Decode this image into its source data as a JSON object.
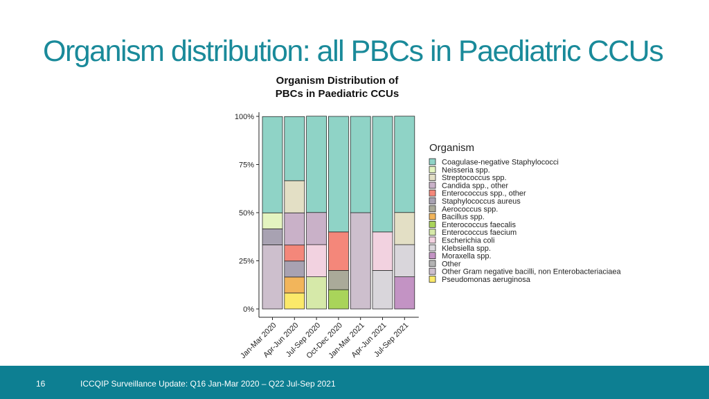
{
  "slide": {
    "title": "Organism distribution: all PBCs in Paediatric CCUs",
    "page_number": "16",
    "footer": "ICCQIP Surveillance Update: Q16 Jan-Mar 2020 – Q22 Jul-Sep 2021"
  },
  "chart_data": {
    "type": "bar",
    "stacked": true,
    "normalized": true,
    "title_lines": [
      "Organism Distribution of",
      "PBCs in Paediatric CCUs"
    ],
    "categories": [
      "Jan-Mar 2020",
      "Apr-Jun 2020",
      "Jul-Sep 2020",
      "Oct-Dec 2020",
      "Jan-Mar 2021",
      "Apr-Jun 2021",
      "Jul-Sep 2021"
    ],
    "y_ticks": [
      "0%",
      "25%",
      "50%",
      "75%",
      "100%"
    ],
    "ylim": [
      0,
      100
    ],
    "legend_title": "Organism",
    "legend_position": "right",
    "series": [
      {
        "name": "Coagulase-negative Staphylococci",
        "color": "#8fd3c6",
        "values": [
          50,
          33.3,
          50,
          60,
          50,
          60,
          50
        ]
      },
      {
        "name": "Neisseria spp.",
        "color": "#e4f4c0",
        "values": [
          8.3,
          0,
          0,
          0,
          0,
          0,
          0
        ]
      },
      {
        "name": "Streptococcus spp.",
        "color": "#e3dfc5",
        "values": [
          0,
          16.7,
          0,
          0,
          0,
          0,
          16.7
        ]
      },
      {
        "name": "Candida spp., other",
        "color": "#c9b1c8",
        "values": [
          0,
          16.7,
          16.7,
          0,
          0,
          0,
          0
        ]
      },
      {
        "name": "Enterococcus spp., other",
        "color": "#f4877a",
        "values": [
          0,
          8.3,
          0,
          20,
          0,
          0,
          0
        ]
      },
      {
        "name": "Staphylococcus aureus",
        "color": "#a8a2b2",
        "values": [
          8.3,
          8.3,
          0,
          0,
          0,
          0,
          0
        ]
      },
      {
        "name": "Aerococcus spp.",
        "color": "#aaaa99",
        "values": [
          0,
          0,
          0,
          10,
          0,
          0,
          0
        ]
      },
      {
        "name": "Bacillus spp.",
        "color": "#f2b55b",
        "values": [
          0,
          8.3,
          0,
          0,
          0,
          0,
          0
        ]
      },
      {
        "name": "Enterococcus faecalis",
        "color": "#a9d45a",
        "values": [
          0,
          0,
          0,
          10,
          0,
          0,
          0
        ]
      },
      {
        "name": "Enterococcus faecium",
        "color": "#d6e9a9",
        "values": [
          0,
          0,
          16.7,
          0,
          0,
          0,
          0
        ]
      },
      {
        "name": "Escherichia coli",
        "color": "#f2d2e0",
        "values": [
          0,
          0,
          16.7,
          0,
          0,
          20,
          0
        ]
      },
      {
        "name": "Klebsiella spp.",
        "color": "#d9d6db",
        "values": [
          0,
          0,
          0,
          0,
          0,
          20,
          16.7
        ]
      },
      {
        "name": "Moraxella spp.",
        "color": "#c393c4",
        "values": [
          0,
          0,
          0,
          0,
          0,
          0,
          16.7
        ]
      },
      {
        "name": "Other",
        "color": "#b3b3b3",
        "values": [
          0,
          0,
          0,
          0,
          0,
          0,
          0
        ]
      },
      {
        "name": "Other Gram negative bacilli, non Enterobacteriaciaea",
        "color": "#cdbfcd",
        "values": [
          33.3,
          0,
          0,
          0,
          50,
          0,
          0
        ]
      },
      {
        "name": "Pseudomonas aeruginosa",
        "color": "#fbe96a",
        "values": [
          0,
          8.3,
          0,
          0,
          0,
          0,
          0
        ]
      }
    ],
    "stack_order_bottom_to_top": [
      "Pseudomonas aeruginosa",
      "Other Gram negative bacilli, non Enterobacteriaciaea",
      "Moraxella spp.",
      "Enterococcus faecalis",
      "Enterococcus faecium",
      "Bacillus spp.",
      "Klebsiella spp.",
      "Aerococcus spp.",
      "Staphylococcus aureus",
      "Escherichia coli",
      "Enterococcus spp., other",
      "Candida spp., other",
      "Streptococcus spp.",
      "Neisseria spp.",
      "Other",
      "Coagulase-negative Staphylococci"
    ]
  }
}
